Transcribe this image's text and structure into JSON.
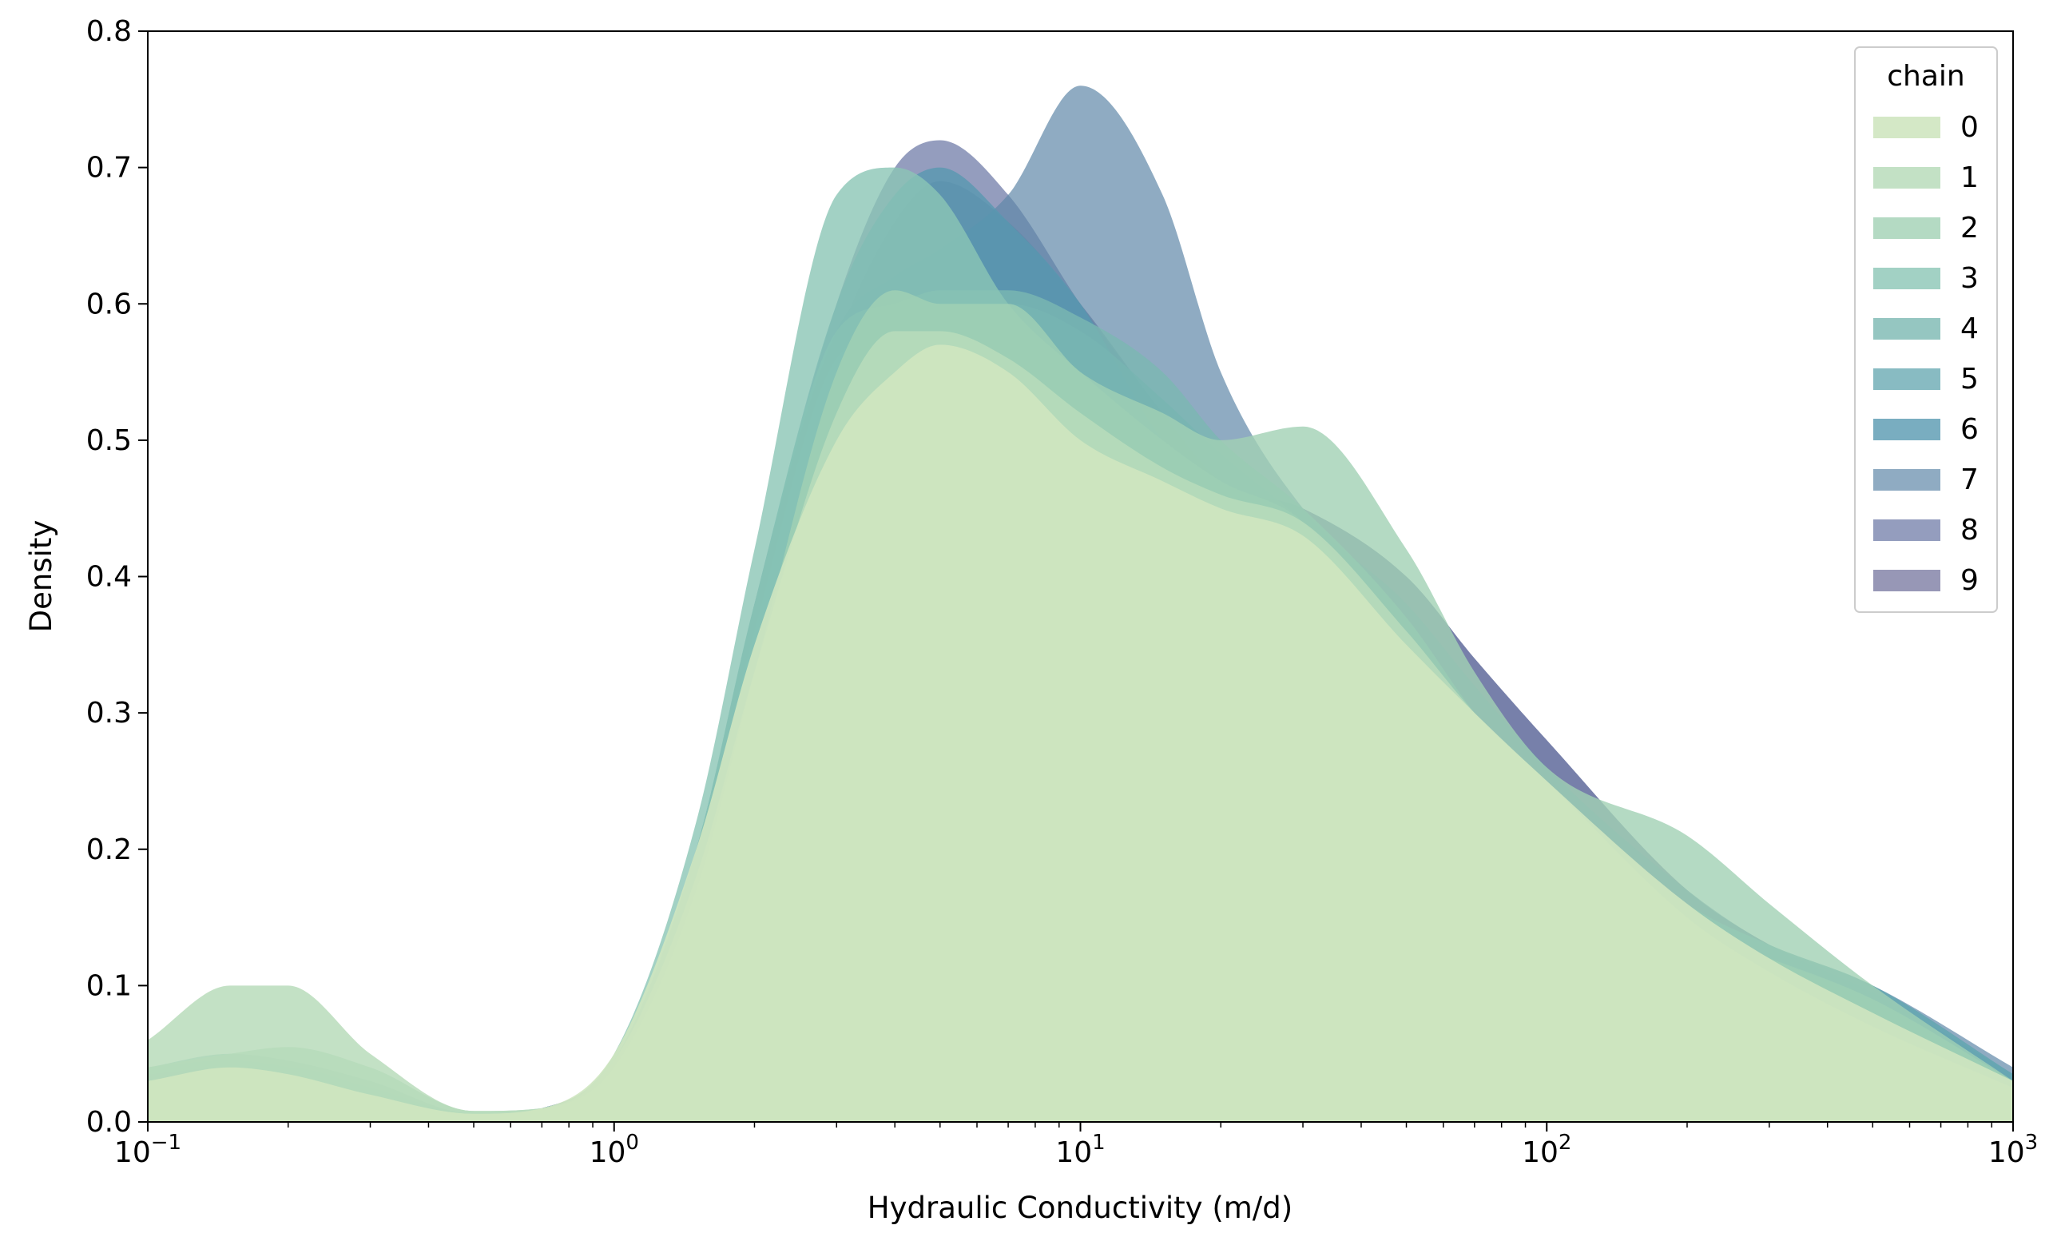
{
  "chart_data": {
    "type": "area",
    "subtype": "kde-density-overlay",
    "title": "",
    "xlabel": "Hydraulic Conductivity (m/d)",
    "ylabel": "Density",
    "xscale": "log",
    "xlim": [
      0.1,
      1000
    ],
    "ylim": [
      0.0,
      0.8
    ],
    "xticks": [
      {
        "value": 0.1,
        "base": "10",
        "exp": "−1"
      },
      {
        "value": 1,
        "base": "10",
        "exp": "0"
      },
      {
        "value": 10,
        "base": "10",
        "exp": "1"
      },
      {
        "value": 100,
        "base": "10",
        "exp": "2"
      },
      {
        "value": 1000,
        "base": "10",
        "exp": "3"
      }
    ],
    "yticks": [
      {
        "value": 0.0,
        "label": "0.0"
      },
      {
        "value": 0.1,
        "label": "0.1"
      },
      {
        "value": 0.2,
        "label": "0.2"
      },
      {
        "value": 0.3,
        "label": "0.3"
      },
      {
        "value": 0.4,
        "label": "0.4"
      },
      {
        "value": 0.5,
        "label": "0.5"
      },
      {
        "value": 0.6,
        "label": "0.6"
      },
      {
        "value": 0.7,
        "label": "0.7"
      },
      {
        "value": 0.8,
        "label": "0.8"
      }
    ],
    "grid": false,
    "legend": {
      "title": "chain",
      "placement": "top-right"
    },
    "x": [
      0.1,
      0.15,
      0.2,
      0.3,
      0.5,
      0.7,
      1,
      1.5,
      2,
      3,
      4,
      5,
      7,
      10,
      15,
      20,
      30,
      50,
      70,
      100,
      200,
      300,
      500,
      1000
    ],
    "series": [
      {
        "name": "0",
        "color": "#cfe6c0",
        "opacity": 0.9,
        "values": [
          0.03,
          0.04,
          0.035,
          0.02,
          0.006,
          0.01,
          0.05,
          0.2,
          0.35,
          0.5,
          0.55,
          0.57,
          0.55,
          0.5,
          0.47,
          0.45,
          0.43,
          0.35,
          0.3,
          0.25,
          0.16,
          0.12,
          0.08,
          0.03
        ]
      },
      {
        "name": "1",
        "color": "#b9dcbb",
        "opacity": 0.85,
        "values": [
          0.06,
          0.1,
          0.1,
          0.05,
          0.008,
          0.01,
          0.045,
          0.18,
          0.33,
          0.52,
          0.58,
          0.58,
          0.56,
          0.52,
          0.48,
          0.46,
          0.44,
          0.36,
          0.3,
          0.25,
          0.15,
          0.11,
          0.07,
          0.025
        ]
      },
      {
        "name": "2",
        "color": "#a1d1b4",
        "opacity": 0.8,
        "values": [
          0.04,
          0.05,
          0.055,
          0.04,
          0.008,
          0.01,
          0.04,
          0.17,
          0.33,
          0.55,
          0.61,
          0.6,
          0.6,
          0.55,
          0.52,
          0.5,
          0.51,
          0.42,
          0.33,
          0.26,
          0.21,
          0.16,
          0.1,
          0.03
        ]
      },
      {
        "name": "3",
        "color": "#8bc5b5",
        "opacity": 0.8,
        "values": [
          0.03,
          0.04,
          0.04,
          0.025,
          0.006,
          0.01,
          0.05,
          0.22,
          0.42,
          0.68,
          0.7,
          0.68,
          0.6,
          0.55,
          0.5,
          0.47,
          0.44,
          0.34,
          0.26,
          0.2,
          0.14,
          0.12,
          0.09,
          0.03
        ]
      },
      {
        "name": "4",
        "color": "#7ab8b2",
        "opacity": 0.8,
        "values": [
          0.04,
          0.05,
          0.045,
          0.03,
          0.006,
          0.01,
          0.045,
          0.2,
          0.38,
          0.58,
          0.6,
          0.61,
          0.61,
          0.59,
          0.55,
          0.5,
          0.45,
          0.37,
          0.3,
          0.24,
          0.15,
          0.12,
          0.09,
          0.03
        ]
      },
      {
        "name": "5",
        "color": "#6aaab3",
        "opacity": 0.8,
        "values": [
          0.04,
          0.045,
          0.04,
          0.025,
          0.006,
          0.01,
          0.045,
          0.19,
          0.36,
          0.56,
          0.58,
          0.59,
          0.6,
          0.58,
          0.53,
          0.49,
          0.44,
          0.36,
          0.3,
          0.25,
          0.16,
          0.13,
          0.1,
          0.035
        ]
      },
      {
        "name": "6",
        "color": "#5898b0",
        "opacity": 0.8,
        "values": [
          0.035,
          0.04,
          0.035,
          0.02,
          0.005,
          0.01,
          0.045,
          0.2,
          0.38,
          0.6,
          0.68,
          0.7,
          0.66,
          0.6,
          0.5,
          0.46,
          0.44,
          0.36,
          0.3,
          0.25,
          0.16,
          0.13,
          0.1,
          0.035
        ]
      },
      {
        "name": "7",
        "color": "#5f87a8",
        "opacity": 0.7,
        "values": [
          0.035,
          0.04,
          0.035,
          0.02,
          0.005,
          0.01,
          0.045,
          0.2,
          0.38,
          0.58,
          0.62,
          0.64,
          0.68,
          0.76,
          0.68,
          0.55,
          0.45,
          0.38,
          0.32,
          0.26,
          0.17,
          0.13,
          0.1,
          0.04
        ]
      },
      {
        "name": "8",
        "color": "#6b77a5",
        "opacity": 0.72,
        "values": [
          0.03,
          0.035,
          0.03,
          0.018,
          0.005,
          0.01,
          0.045,
          0.2,
          0.38,
          0.6,
          0.7,
          0.72,
          0.68,
          0.6,
          0.52,
          0.47,
          0.45,
          0.4,
          0.34,
          0.28,
          0.17,
          0.13,
          0.095,
          0.035
        ]
      },
      {
        "name": "9",
        "color": "#6f6f9a",
        "opacity": 0.72,
        "values": [
          0.03,
          0.035,
          0.03,
          0.018,
          0.005,
          0.01,
          0.045,
          0.19,
          0.36,
          0.57,
          0.66,
          0.69,
          0.66,
          0.6,
          0.52,
          0.47,
          0.45,
          0.4,
          0.34,
          0.28,
          0.17,
          0.13,
          0.095,
          0.035
        ]
      }
    ]
  }
}
